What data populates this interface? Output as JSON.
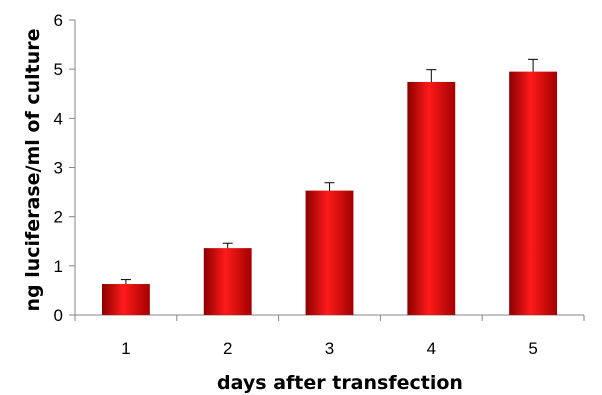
{
  "chart_data": {
    "type": "bar",
    "title": "",
    "xlabel": "days after transfection",
    "ylabel": "ng luciferase/ml of culture",
    "categories": [
      "1",
      "2",
      "3",
      "4",
      "5"
    ],
    "series": [
      {
        "values": [
          0.63,
          1.36,
          2.53,
          4.74,
          4.95
        ],
        "errors": [
          0.09,
          0.1,
          0.16,
          0.25,
          0.25
        ]
      }
    ],
    "ylim": [
      0,
      6
    ],
    "yticks": [
      "0",
      "1",
      "2",
      "3",
      "4",
      "5",
      "6"
    ],
    "grid": false,
    "legend": "none",
    "colors": {
      "bar_edge": "#8b0000",
      "bar_mid": "#ff1a1a",
      "bar_dark": "#a30000",
      "axis": "#868686",
      "error_bar": "#000000"
    }
  }
}
